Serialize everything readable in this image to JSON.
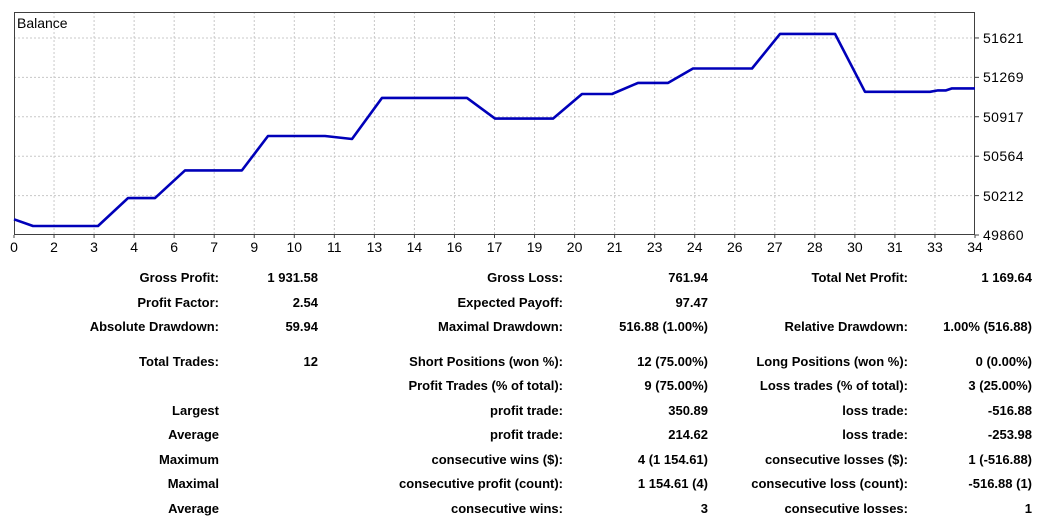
{
  "chart_data": {
    "type": "line",
    "title": "Balance",
    "line_color": "#0000b9",
    "grid": true,
    "x_axis": {
      "note": "x stored as fraction of plot width; gridlines evenly spaced",
      "tick_labels": [
        "0",
        "2",
        "3",
        "4",
        "6",
        "7",
        "9",
        "10",
        "11",
        "13",
        "14",
        "16",
        "17",
        "19",
        "20",
        "21",
        "23",
        "24",
        "26",
        "27",
        "28",
        "30",
        "31",
        "33",
        "34"
      ]
    },
    "y_axis": {
      "ticks": [
        49860,
        50212,
        50564,
        50917,
        51269,
        51621
      ],
      "range": [
        49860,
        51853
      ]
    },
    "series": [
      {
        "name": "Balance",
        "points": [
          [
            0.0,
            50000
          ],
          [
            0.0198,
            49940
          ],
          [
            0.0874,
            49940
          ],
          [
            0.1186,
            50190
          ],
          [
            0.1467,
            50190
          ],
          [
            0.1779,
            50437
          ],
          [
            0.2372,
            50437
          ],
          [
            0.2643,
            50745
          ],
          [
            0.3236,
            50745
          ],
          [
            0.3517,
            50718
          ],
          [
            0.3829,
            51085
          ],
          [
            0.4714,
            51085
          ],
          [
            0.5005,
            50900
          ],
          [
            0.5609,
            50900
          ],
          [
            0.591,
            51120
          ],
          [
            0.6223,
            51120
          ],
          [
            0.6493,
            51219
          ],
          [
            0.6806,
            51219
          ],
          [
            0.7066,
            51348
          ],
          [
            0.7679,
            51348
          ],
          [
            0.7971,
            51657
          ],
          [
            0.8543,
            51657
          ],
          [
            0.8855,
            51140
          ],
          [
            0.9532,
            51140
          ],
          [
            0.9615,
            51152
          ],
          [
            0.9698,
            51152
          ],
          [
            0.9761,
            51170
          ],
          [
            1.0,
            51170
          ]
        ]
      }
    ]
  },
  "report": {
    "rows": [
      {
        "cells": [
          "Gross Profit:",
          "1 931.58",
          "Gross Loss:",
          "761.94",
          "Total Net Profit:",
          "1 169.64"
        ],
        "gap": false
      },
      {
        "cells": [
          "Profit Factor:",
          "2.54",
          "Expected Payoff:",
          "97.47",
          "",
          ""
        ],
        "gap": false
      },
      {
        "cells": [
          "Absolute Drawdown:",
          "59.94",
          "Maximal Drawdown:",
          "516.88 (1.00%)",
          "Relative Drawdown:",
          "1.00% (516.88)"
        ],
        "gap": false
      },
      {
        "cells": [
          "Total Trades:",
          "12",
          "Short Positions (won %):",
          "12 (75.00%)",
          "Long Positions (won %):",
          "0 (0.00%)"
        ],
        "gap": true
      },
      {
        "cells": [
          "",
          "",
          "Profit Trades (% of total):",
          "9 (75.00%)",
          "Loss trades (% of total):",
          "3 (25.00%)"
        ],
        "gap": false
      },
      {
        "cells": [
          "Largest",
          "",
          "profit trade:",
          "350.89",
          "loss trade:",
          "-516.88"
        ],
        "gap": false
      },
      {
        "cells": [
          "Average",
          "",
          "profit trade:",
          "214.62",
          "loss trade:",
          "-253.98"
        ],
        "gap": false
      },
      {
        "cells": [
          "Maximum",
          "",
          "consecutive wins ($):",
          "4 (1 154.61)",
          "consecutive losses ($):",
          "1 (-516.88)"
        ],
        "gap": false
      },
      {
        "cells": [
          "Maximal",
          "",
          "consecutive profit (count):",
          "1 154.61 (4)",
          "consecutive loss (count):",
          "-516.88 (1)"
        ],
        "gap": false
      },
      {
        "cells": [
          "Average",
          "",
          "consecutive wins:",
          "3",
          "consecutive losses:",
          "1"
        ],
        "gap": false
      }
    ]
  }
}
